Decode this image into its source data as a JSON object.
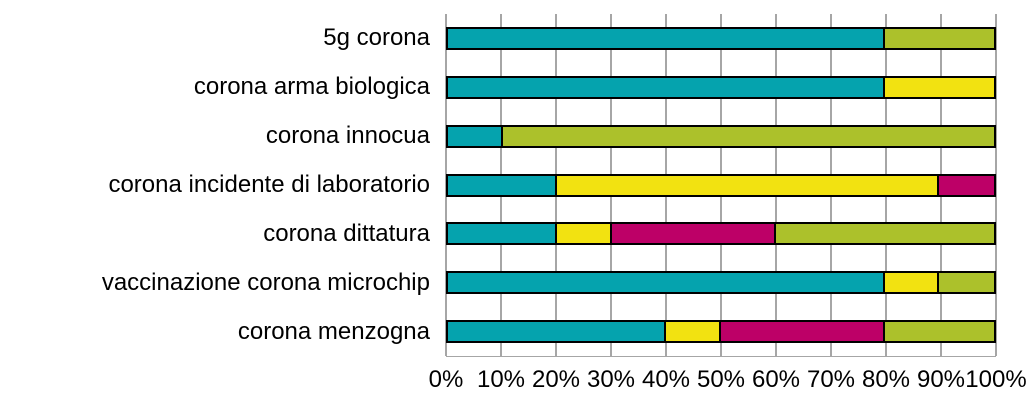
{
  "chart_data": {
    "type": "bar",
    "orientation": "horizontal",
    "stacked": true,
    "title": "",
    "xlabel": "",
    "ylabel": "",
    "unit": "%",
    "xlim": [
      0,
      100
    ],
    "grid": true,
    "legend_position": "none",
    "categories": [
      "5g corona",
      "corona arma biologica",
      "corona innocua",
      "corona incidente di laboratorio",
      "corona dittatura",
      "vaccinazione corona microchip",
      "corona menzogna"
    ],
    "series": [
      {
        "name": "teal",
        "color": "#05A3AE",
        "values": [
          80,
          80,
          10,
          20,
          20,
          80,
          40
        ]
      },
      {
        "name": "yellow",
        "color": "#F2E211",
        "values": [
          0,
          20,
          0,
          70,
          10,
          10,
          10
        ]
      },
      {
        "name": "magenta",
        "color": "#BD0067",
        "values": [
          0,
          0,
          0,
          10,
          30,
          0,
          30
        ]
      },
      {
        "name": "olive",
        "color": "#ACC12B",
        "values": [
          20,
          0,
          90,
          0,
          40,
          10,
          20
        ]
      }
    ],
    "x_ticks": [
      "0%",
      "10%",
      "20%",
      "30%",
      "40%",
      "50%",
      "60%",
      "70%",
      "80%",
      "90%",
      "100%"
    ]
  },
  "colors": {
    "background": "#FFFFFF",
    "gridline": "#A6A6A6",
    "bar_border": "#000000",
    "text": "#000000"
  }
}
